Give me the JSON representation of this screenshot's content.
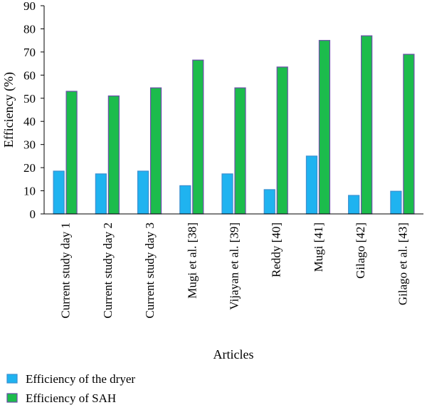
{
  "chart_data": {
    "type": "bar",
    "title": "",
    "xlabel": "Articles",
    "ylabel": "Efficiency (%)",
    "ylim": [
      0,
      90
    ],
    "yticks": [
      0,
      10,
      20,
      30,
      40,
      50,
      60,
      70,
      80,
      90
    ],
    "grid": false,
    "legend_position": "bottom-left",
    "categories": [
      "Current study day 1",
      "Current study day 2",
      "Current study day 3",
      "Mugi et al. [38]",
      "Vijayan et al. [39]",
      "Reddy [40]",
      "Mugi [41]",
      "Gilago [42]",
      "Gilago et al. [43]"
    ],
    "series": [
      {
        "name": "Efficiency of the dryer",
        "color": "#1fb3f0",
        "edge_color": "#3a8fd0",
        "values": [
          18.5,
          17.3,
          18.5,
          12.2,
          17.3,
          10.5,
          25.0,
          8.0,
          9.8
        ]
      },
      {
        "name": "Efficiency of SAH",
        "color": "#1cbc4c",
        "edge_color": "#6a4ea8",
        "values": [
          53.0,
          51.0,
          54.5,
          66.5,
          54.5,
          63.5,
          75.0,
          77.0,
          69.0
        ]
      }
    ]
  }
}
